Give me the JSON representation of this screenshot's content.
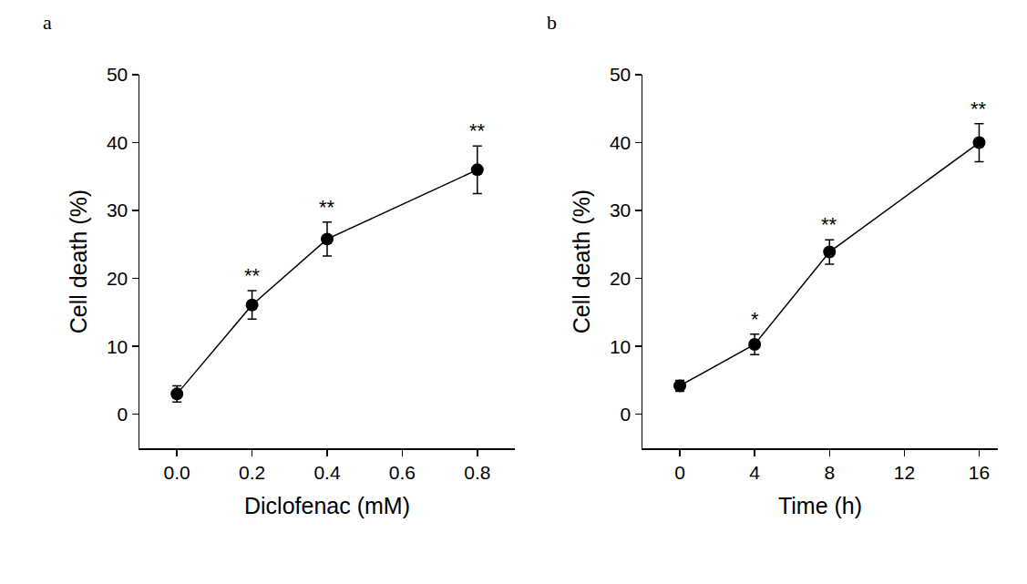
{
  "chart_data": [
    {
      "type": "line",
      "title": "a",
      "marker": "circle",
      "color": "#000000",
      "x": [
        0,
        0.2,
        0.4,
        0.8
      ],
      "values": [
        3.0,
        16.1,
        25.8,
        36.0
      ],
      "errors": [
        1.2,
        2.1,
        2.5,
        3.5
      ],
      "significance": [
        null,
        "**",
        "**",
        "**"
      ],
      "x_label": "Diclofenac (mM)",
      "y_label": "Cell death (%)",
      "xlim": [
        -0.1,
        0.9
      ],
      "xticks": [
        {
          "value": 0,
          "label": "0.0"
        },
        {
          "value": 0.2,
          "label": "0.2"
        },
        {
          "value": 0.4,
          "label": "0.4"
        },
        {
          "value": 0.6,
          "label": "0.6"
        },
        {
          "value": 0.8,
          "label": "0.8"
        }
      ],
      "ylim": [
        -5,
        50
      ],
      "yticks": [
        0,
        10,
        20,
        30,
        40,
        50
      ]
    },
    {
      "type": "line",
      "title": "b",
      "marker": "circle",
      "color": "#000000",
      "x": [
        0,
        4,
        8,
        16
      ],
      "values": [
        4.2,
        10.3,
        23.9,
        40.0
      ],
      "errors": [
        0.8,
        1.5,
        1.8,
        2.8
      ],
      "significance": [
        null,
        "*",
        "**",
        "**"
      ],
      "x_label": "Time (h)",
      "y_label": "Cell death (%)",
      "xlim": [
        -2,
        17
      ],
      "xticks": [
        0,
        4,
        8,
        12,
        16
      ],
      "ylim": [
        -5,
        50
      ],
      "yticks": [
        0,
        10,
        20,
        30,
        40,
        50
      ]
    }
  ]
}
